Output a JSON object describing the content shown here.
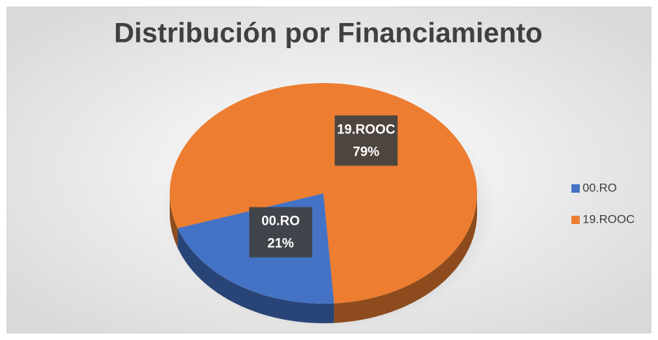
{
  "chart_data": {
    "type": "pie",
    "title": "Distribución por Financiamiento",
    "categories": [
      "00.RO",
      "19.ROOC"
    ],
    "values": [
      21,
      79
    ],
    "value_labels": [
      "21%",
      "79%"
    ],
    "colors": [
      "#4472c4",
      "#ed7d31"
    ],
    "legend": "right"
  }
}
